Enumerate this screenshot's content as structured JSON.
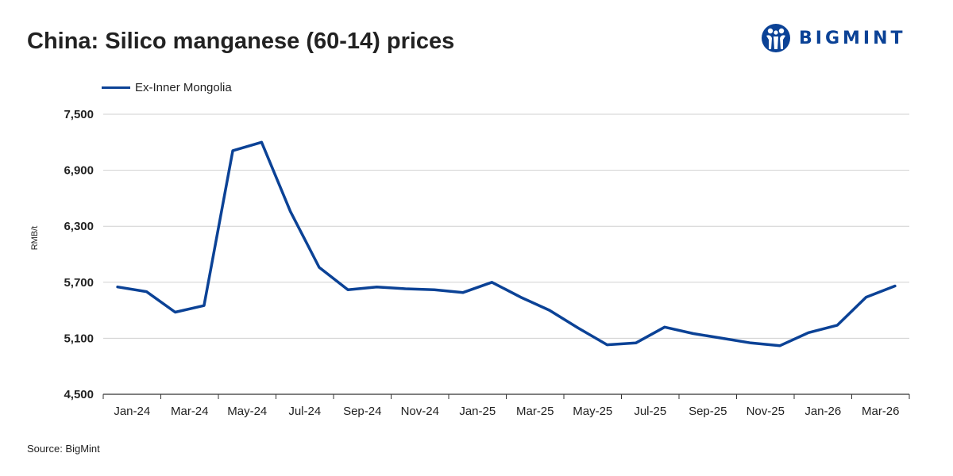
{
  "title": "China: Silico manganese (60-14) prices",
  "logo": {
    "text": "BIGMINT",
    "icon": "bigmint-people-icon",
    "brand_color": "#0b4296"
  },
  "source": "Source: BigMint",
  "colors": {
    "series": "#0b4296",
    "grid": "#d0d0d0",
    "axis": "#333333"
  },
  "chart_data": {
    "type": "line",
    "title": "China: Silico manganese (60-14) prices",
    "xlabel": "",
    "ylabel": "RMB/t",
    "ylim": [
      4500,
      7500
    ],
    "yticks": [
      4500,
      5100,
      5700,
      6300,
      6900,
      7500
    ],
    "ytick_labels": [
      "4,500",
      "5,100",
      "5,700",
      "6,300",
      "6,900",
      "7,500"
    ],
    "grid": true,
    "legend": "top-left",
    "x_tick_labels": [
      "Jan-24",
      "Mar-24",
      "May-24",
      "Jul-24",
      "Sep-24",
      "Nov-24",
      "Jan-25",
      "Mar-25",
      "May-25",
      "Jul-25",
      "Sep-25",
      "Nov-25",
      "Jan-26",
      "Mar-26"
    ],
    "x": [
      "Jan-24",
      "Feb-24",
      "Mar-24",
      "Apr-24",
      "May-24",
      "Jun-24",
      "Jul-24",
      "Aug-24",
      "Sep-24",
      "Oct-24",
      "Nov-24",
      "Dec-24",
      "Jan-25",
      "Feb-25",
      "Mar-25",
      "Apr-25",
      "May-25",
      "Jun-25",
      "Jul-25",
      "Aug-25",
      "Sep-25",
      "Oct-25",
      "Nov-25",
      "Dec-25",
      "Jan-26",
      "Feb-26",
      "Mar-26",
      "Apr-26"
    ],
    "series": [
      {
        "name": "Ex-Inner Mongolia",
        "color": "#0b4296",
        "values": [
          5650,
          5600,
          5380,
          5450,
          7110,
          7200,
          6460,
          5860,
          5620,
          5650,
          5630,
          5620,
          5590,
          5700,
          5540,
          5400,
          5210,
          5030,
          5050,
          5220,
          5150,
          5100,
          5050,
          5020,
          5160,
          5240,
          5540,
          5660
        ]
      }
    ]
  }
}
